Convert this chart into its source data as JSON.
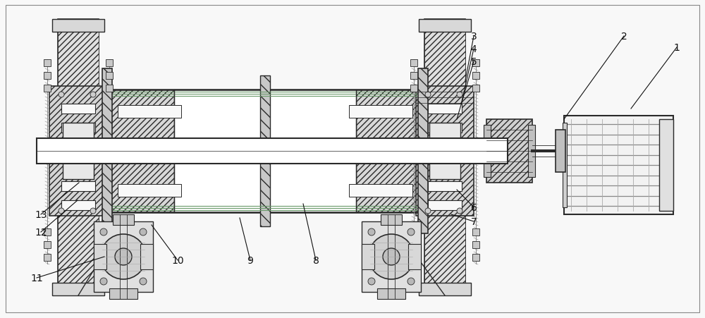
{
  "bg_color": "#f8f8f8",
  "lc": "#2a2a2a",
  "hatch_fc": "#d8d8d8",
  "figsize": [
    10.0,
    4.52
  ],
  "dpi": 100,
  "labels": [
    [
      "1",
      960,
      68,
      895,
      155
    ],
    [
      "2",
      885,
      52,
      800,
      170
    ],
    [
      "3",
      672,
      52,
      660,
      115
    ],
    [
      "4",
      672,
      70,
      655,
      145
    ],
    [
      "5",
      672,
      88,
      648,
      170
    ],
    [
      "6",
      672,
      295,
      648,
      270
    ],
    [
      "7",
      672,
      315,
      640,
      305
    ],
    [
      "8",
      448,
      370,
      430,
      290
    ],
    [
      "9",
      355,
      370,
      340,
      310
    ],
    [
      "10",
      252,
      370,
      215,
      320
    ],
    [
      "11",
      52,
      395,
      148,
      365
    ],
    [
      "12",
      58,
      330,
      110,
      285
    ],
    [
      "13",
      58,
      305,
      112,
      260
    ]
  ]
}
